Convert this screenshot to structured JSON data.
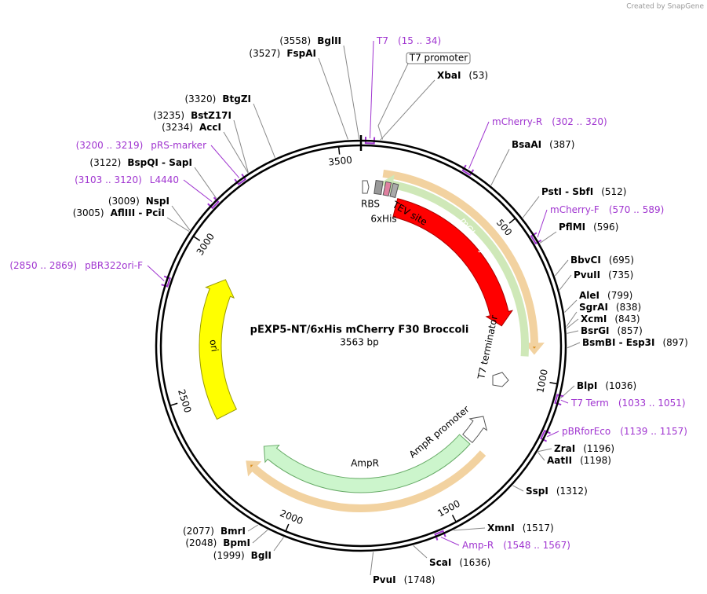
{
  "watermark": "Created by SnapGene",
  "title": "pEXP5-NT/6xHis mCherry F30 Broccoli",
  "length": "3563 bp",
  "ticks": [
    "500",
    "1000",
    "1500",
    "2000",
    "2500",
    "3000",
    "3500"
  ],
  "sites": [
    {
      "name": "BglII",
      "position": "(3558)"
    },
    {
      "name": "FspAI",
      "position": "(3527)"
    },
    {
      "name": "BtgZI",
      "position": "(3320)"
    },
    {
      "name": "BstZ17I",
      "position": "(3235)"
    },
    {
      "name": "AccI",
      "position": "(3234)"
    },
    {
      "name": "BspQI  -  SapI",
      "position": "(3122)"
    },
    {
      "name": "NspI",
      "position": "(3009)"
    },
    {
      "name": "AflIII  -  PciI",
      "position": "(3005)"
    },
    {
      "name": "BmrI",
      "position": "(2077)"
    },
    {
      "name": "BpmI",
      "position": "(2048)"
    },
    {
      "name": "BglI",
      "position": "(1999)"
    },
    {
      "name": "XbaI",
      "position": "(53)"
    },
    {
      "name": "BsaAI",
      "position": "(387)"
    },
    {
      "name": "PstI  -  SbfI",
      "position": "(512)"
    },
    {
      "name": "PflMI",
      "position": "(596)"
    },
    {
      "name": "BbvCI",
      "position": "(695)"
    },
    {
      "name": "PvuII",
      "position": "(735)"
    },
    {
      "name": "AleI",
      "position": "(799)"
    },
    {
      "name": "SgrAI",
      "position": "(838)"
    },
    {
      "name": "XcmI",
      "position": "(843)"
    },
    {
      "name": "BsrGI",
      "position": "(857)"
    },
    {
      "name": "BsmBI  -  Esp3I",
      "position": "(897)"
    },
    {
      "name": "BlpI",
      "position": "(1036)"
    },
    {
      "name": "ZraI",
      "position": "(1196)"
    },
    {
      "name": "AatII",
      "position": "(1198)"
    },
    {
      "name": "SspI",
      "position": "(1312)"
    },
    {
      "name": "XmnI",
      "position": "(1517)"
    },
    {
      "name": "ScaI",
      "position": "(1636)"
    },
    {
      "name": "PvuI",
      "position": "(1748)"
    }
  ],
  "primers": [
    {
      "name": "T7",
      "range": "(15 .. 34)"
    },
    {
      "name": "mCherry-R",
      "range": "(302 .. 320)"
    },
    {
      "name": "mCherry-F",
      "range": "(570 .. 589)"
    },
    {
      "name": "T7 Term",
      "range": "(1033 .. 1051)"
    },
    {
      "name": "pBRforEco",
      "range": "(1139 .. 1157)"
    },
    {
      "name": "Amp-R",
      "range": "(1548 .. 1567)"
    },
    {
      "name": "pBR322ori-F",
      "range": "(2850 .. 2869)"
    },
    {
      "name": "L4440",
      "range": "(3103 .. 3120)"
    },
    {
      "name": "pRS-marker",
      "range": "(3200 .. 3219)"
    }
  ],
  "features": [
    "T7 promoter",
    "RBS",
    "6xHis",
    "TEV site",
    "mCherry",
    "T7 terminator",
    "AmpR promoter",
    "AmpR",
    "ori"
  ]
}
